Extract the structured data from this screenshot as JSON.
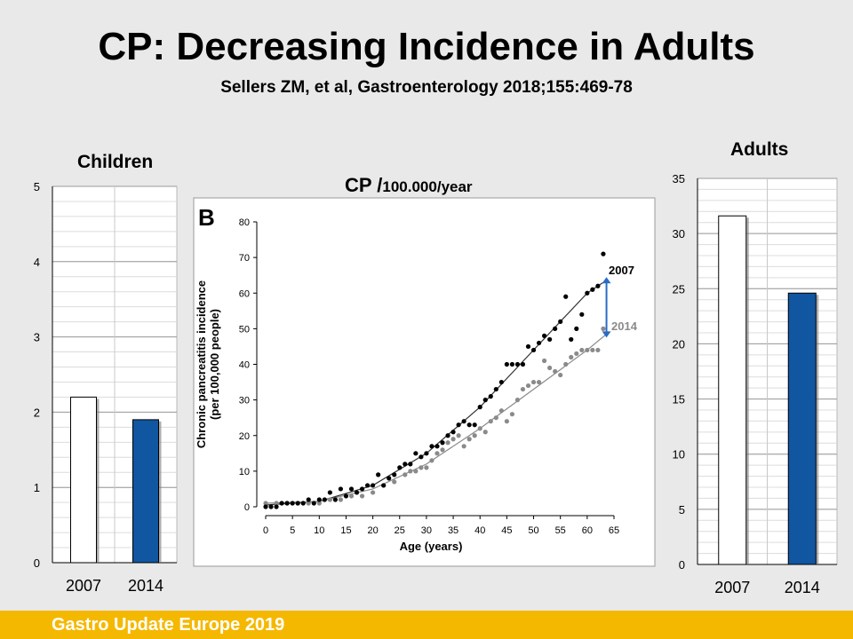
{
  "slide": {
    "title": "CP: Decreasing Incidence in Adults",
    "subtitle": "Sellers ZM, et al, Gastroenterology 2018;155:469-78",
    "center_title_main": "CP /",
    "center_title_unit": "100.000/year",
    "footer": "Gastro Update Europe 2019"
  },
  "colors": {
    "bar_2007": "#ffffff",
    "bar_2014": "#1156a0",
    "footer": "#f5b800",
    "arrow": "#2a6bc4"
  },
  "chart_data": [
    {
      "type": "bar",
      "title": "Children",
      "categories": [
        "2007",
        "2014"
      ],
      "values": [
        2.2,
        1.9
      ],
      "ylim": [
        0,
        5
      ],
      "yticks": [
        "0",
        "1",
        "2",
        "3",
        "4",
        "5"
      ],
      "grid": true
    },
    {
      "type": "scatter",
      "panel_label": "B",
      "xlabel": "Age (years)",
      "ylabel": "Chronic pancreatitis incidence\n(per 100,000 people)",
      "xlim": [
        0,
        65
      ],
      "ylim": [
        0,
        80
      ],
      "xticks": [
        "0",
        "5",
        "10",
        "15",
        "20",
        "25",
        "30",
        "35",
        "40",
        "45",
        "50",
        "55",
        "60",
        "65"
      ],
      "yticks": [
        "0",
        "10",
        "20",
        "30",
        "40",
        "50",
        "60",
        "70",
        "80"
      ],
      "series": [
        {
          "name": "2007",
          "color": "#000000",
          "points": [
            [
              0,
              0
            ],
            [
              1,
              0
            ],
            [
              2,
              0
            ],
            [
              3,
              1
            ],
            [
              4,
              1
            ],
            [
              5,
              1
            ],
            [
              6,
              1
            ],
            [
              7,
              1
            ],
            [
              8,
              2
            ],
            [
              9,
              1
            ],
            [
              10,
              2
            ],
            [
              11,
              2
            ],
            [
              12,
              4
            ],
            [
              13,
              2
            ],
            [
              14,
              5
            ],
            [
              15,
              3
            ],
            [
              16,
              5
            ],
            [
              17,
              4
            ],
            [
              18,
              5
            ],
            [
              19,
              6
            ],
            [
              20,
              6
            ],
            [
              21,
              9
            ],
            [
              22,
              6
            ],
            [
              23,
              8
            ],
            [
              24,
              9
            ],
            [
              25,
              11
            ],
            [
              26,
              12
            ],
            [
              27,
              12
            ],
            [
              28,
              15
            ],
            [
              29,
              14
            ],
            [
              30,
              15
            ],
            [
              31,
              17
            ],
            [
              32,
              17
            ],
            [
              33,
              18
            ],
            [
              34,
              20
            ],
            [
              35,
              21
            ],
            [
              36,
              23
            ],
            [
              37,
              24
            ],
            [
              38,
              23
            ],
            [
              39,
              23
            ],
            [
              40,
              28
            ],
            [
              41,
              30
            ],
            [
              42,
              31
            ],
            [
              43,
              33
            ],
            [
              44,
              35
            ],
            [
              45,
              40
            ],
            [
              46,
              40
            ],
            [
              47,
              40
            ],
            [
              48,
              40
            ],
            [
              49,
              45
            ],
            [
              50,
              44
            ],
            [
              51,
              46
            ],
            [
              52,
              48
            ],
            [
              53,
              47
            ],
            [
              54,
              50
            ],
            [
              55,
              52
            ],
            [
              56,
              59
            ],
            [
              57,
              47
            ],
            [
              58,
              50
            ],
            [
              59,
              54
            ],
            [
              60,
              60
            ],
            [
              61,
              61
            ],
            [
              62,
              62
            ],
            [
              63,
              71
            ]
          ],
          "fit": [
            [
              0,
              0.5
            ],
            [
              10,
              1.5
            ],
            [
              20,
              6
            ],
            [
              30,
              15
            ],
            [
              40,
              28
            ],
            [
              50,
              44
            ],
            [
              60,
              60
            ],
            [
              63,
              63
            ]
          ],
          "label": "2007"
        },
        {
          "name": "2014",
          "color": "#8a8a8a",
          "points": [
            [
              0,
              1
            ],
            [
              2,
              1
            ],
            [
              4,
              1
            ],
            [
              6,
              1
            ],
            [
              8,
              1
            ],
            [
              10,
              1
            ],
            [
              12,
              2
            ],
            [
              14,
              2
            ],
            [
              16,
              3
            ],
            [
              18,
              3
            ],
            [
              20,
              4
            ],
            [
              22,
              6
            ],
            [
              24,
              7
            ],
            [
              26,
              9
            ],
            [
              27,
              10
            ],
            [
              28,
              10
            ],
            [
              29,
              11
            ],
            [
              30,
              11
            ],
            [
              31,
              13
            ],
            [
              32,
              15
            ],
            [
              33,
              16
            ],
            [
              34,
              18
            ],
            [
              35,
              19
            ],
            [
              36,
              20
            ],
            [
              37,
              17
            ],
            [
              38,
              19
            ],
            [
              39,
              20
            ],
            [
              40,
              22
            ],
            [
              41,
              21
            ],
            [
              42,
              24
            ],
            [
              43,
              25
            ],
            [
              44,
              27
            ],
            [
              45,
              24
            ],
            [
              46,
              26
            ],
            [
              47,
              30
            ],
            [
              48,
              33
            ],
            [
              49,
              34
            ],
            [
              50,
              35
            ],
            [
              51,
              35
            ],
            [
              52,
              41
            ],
            [
              53,
              39
            ],
            [
              54,
              38
            ],
            [
              55,
              37
            ],
            [
              56,
              40
            ],
            [
              57,
              42
            ],
            [
              58,
              43
            ],
            [
              59,
              44
            ],
            [
              60,
              44
            ],
            [
              61,
              44
            ],
            [
              62,
              44
            ],
            [
              63,
              50
            ]
          ],
          "fit": [
            [
              0,
              1
            ],
            [
              10,
              1.5
            ],
            [
              20,
              5
            ],
            [
              30,
              12
            ],
            [
              40,
              22
            ],
            [
              50,
              33
            ],
            [
              60,
              44
            ],
            [
              64,
              49
            ]
          ],
          "label": "2014"
        }
      ]
    },
    {
      "type": "bar",
      "title": "Adults",
      "categories": [
        "2007",
        "2014"
      ],
      "values": [
        31.6,
        24.6
      ],
      "ylim": [
        0,
        35
      ],
      "yticks": [
        "0",
        "5",
        "10",
        "15",
        "20",
        "25",
        "30",
        "35"
      ],
      "grid": true
    }
  ]
}
